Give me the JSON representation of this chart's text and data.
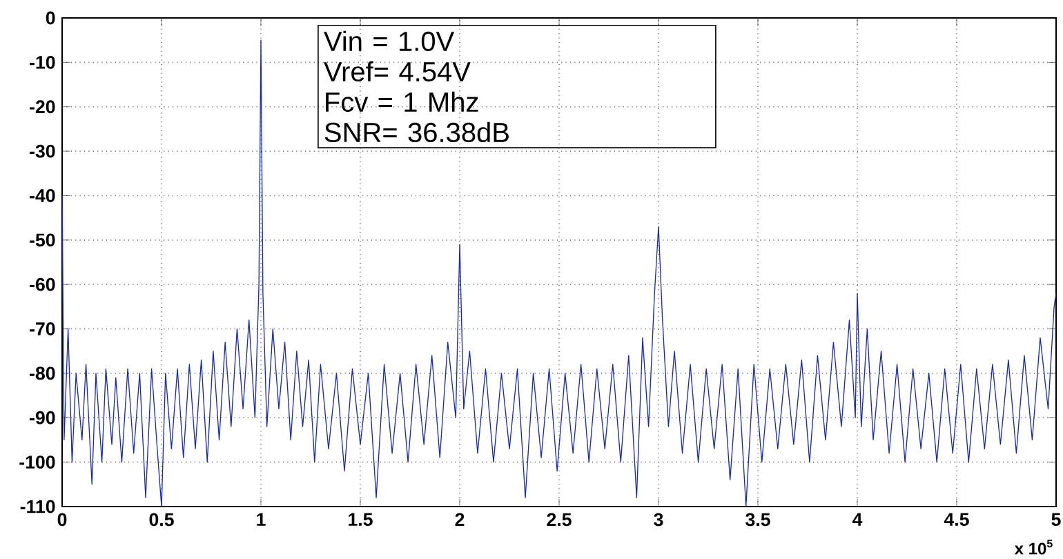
{
  "chart_data": {
    "type": "line",
    "annotations": [
      "Vin = 1.0V",
      "Vref= 4.54V",
      "Fcv = 1 Mhz",
      "SNR= 36.38dB",
      "x 10$^{5}$"
    ],
    "xlim": [
      0,
      5
    ],
    "xticks": [
      0,
      0.5,
      1,
      1.5,
      2,
      2.5,
      3,
      3.5,
      4,
      4.5,
      5
    ],
    "ylim": [
      -110,
      0
    ],
    "yticks": [
      -110,
      -100,
      -90,
      -80,
      -70,
      -60,
      -50,
      -40,
      -30,
      -20,
      -10,
      0
    ],
    "grid": true,
    "line_style": "solid",
    "series": [
      {
        "color": "#1a2aa8",
        "x": [
          0,
          0.01,
          0.03,
          0.05,
          0.07,
          0.1,
          0.12,
          0.15,
          0.17,
          0.2,
          0.22,
          0.25,
          0.27,
          0.3,
          0.33,
          0.36,
          0.39,
          0.42,
          0.45,
          0.48,
          0.5,
          0.52,
          0.55,
          0.58,
          0.61,
          0.64,
          0.67,
          0.7,
          0.73,
          0.76,
          0.79,
          0.82,
          0.85,
          0.88,
          0.91,
          0.94,
          0.97,
          0.99,
          1.0,
          1.01,
          1.03,
          1.06,
          1.09,
          1.12,
          1.15,
          1.18,
          1.21,
          1.24,
          1.27,
          1.3,
          1.34,
          1.38,
          1.42,
          1.46,
          1.5,
          1.54,
          1.58,
          1.62,
          1.66,
          1.7,
          1.74,
          1.78,
          1.82,
          1.86,
          1.9,
          1.94,
          1.98,
          2.0,
          2.02,
          2.05,
          2.09,
          2.13,
          2.17,
          2.21,
          2.25,
          2.29,
          2.33,
          2.37,
          2.41,
          2.45,
          2.49,
          2.53,
          2.57,
          2.61,
          2.65,
          2.69,
          2.73,
          2.77,
          2.81,
          2.85,
          2.89,
          2.92,
          2.95,
          2.98,
          3.0,
          3.02,
          3.05,
          3.08,
          3.12,
          3.16,
          3.2,
          3.24,
          3.28,
          3.32,
          3.36,
          3.4,
          3.44,
          3.48,
          3.52,
          3.56,
          3.6,
          3.64,
          3.68,
          3.72,
          3.76,
          3.8,
          3.84,
          3.88,
          3.92,
          3.96,
          3.99,
          4.0,
          4.02,
          4.05,
          4.08,
          4.12,
          4.16,
          4.2,
          4.24,
          4.28,
          4.32,
          4.36,
          4.4,
          4.44,
          4.48,
          4.52,
          4.56,
          4.6,
          4.64,
          4.68,
          4.72,
          4.76,
          4.8,
          4.84,
          4.88,
          4.92,
          4.96,
          4.99,
          5.0
        ],
        "values": [
          -40,
          -95,
          -70,
          -100,
          -80,
          -95,
          -78,
          -105,
          -80,
          -100,
          -79,
          -96,
          -81,
          -100,
          -79,
          -98,
          -80,
          -108,
          -79,
          -98,
          -110,
          -80,
          -97,
          -79,
          -99,
          -78,
          -97,
          -77,
          -100,
          -75,
          -95,
          -73,
          -92,
          -70,
          -88,
          -68,
          -90,
          -60,
          -5,
          -62,
          -92,
          -70,
          -88,
          -73,
          -95,
          -75,
          -92,
          -77,
          -100,
          -78,
          -97,
          -80,
          -102,
          -79,
          -96,
          -80,
          -108,
          -78,
          -98,
          -80,
          -100,
          -78,
          -96,
          -76,
          -99,
          -73,
          -90,
          -51,
          -88,
          -75,
          -98,
          -79,
          -100,
          -80,
          -97,
          -79,
          -108,
          -80,
          -99,
          -79,
          -102,
          -80,
          -98,
          -78,
          -100,
          -79,
          -97,
          -78,
          -100,
          -76,
          -108,
          -72,
          -92,
          -62,
          -47,
          -68,
          -92,
          -75,
          -98,
          -78,
          -100,
          -79,
          -97,
          -78,
          -104,
          -79,
          -110,
          -78,
          -100,
          -79,
          -97,
          -78,
          -96,
          -77,
          -100,
          -76,
          -95,
          -73,
          -92,
          -68,
          -90,
          -62,
          -92,
          -70,
          -95,
          -75,
          -98,
          -78,
          -100,
          -79,
          -97,
          -80,
          -100,
          -79,
          -98,
          -78,
          -100,
          -79,
          -97,
          -78,
          -96,
          -77,
          -98,
          -76,
          -95,
          -72,
          -88,
          -65,
          -62
        ]
      }
    ]
  }
}
